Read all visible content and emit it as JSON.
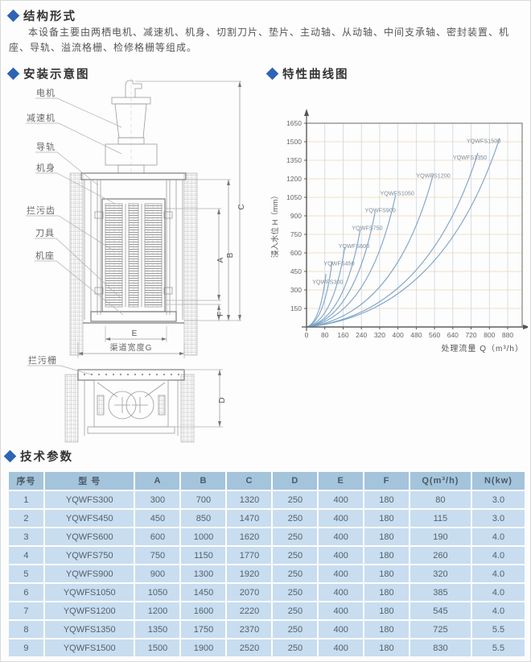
{
  "colors": {
    "accent_blue": "#2e63b5",
    "table_header_bg": "#a4c4db",
    "table_row_bg": "#c8ddef",
    "curve_color": "#7ba2c9",
    "grid_h_color": "#f0d3b5",
    "grid_v_color": "#ccd6e2"
  },
  "page": {
    "heading_structure": "结构形式",
    "intro": "本设备主要由两栖电机、减速机、机身、切割刀片、垫片、主动轴、从动轴、中间支承轴、密封装置、机座、导轨、溢流格栅、检修格栅等组成。",
    "heading_install": "安装示意图",
    "heading_curve": "特性曲线图",
    "heading_params": "技术参数"
  },
  "diagram": {
    "labels": {
      "motor": "电机",
      "reducer": "减速机",
      "guide_rail": "导轨",
      "body": "机身",
      "trash_teeth": "拦污齿",
      "cutter": "刀具",
      "base": "机座",
      "trash_rack": "拦污栅"
    },
    "dims": {
      "A": "A",
      "B": "B",
      "C": "C",
      "D": "D",
      "E": "E",
      "F": "F",
      "channel_width": "渠道宽度G"
    }
  },
  "chart_data": {
    "type": "line",
    "title": "特性曲线图",
    "xlabel": "处理流量 Q（m³/h）",
    "ylabel": "浸入水位 H（mm）",
    "xlim": [
      0,
      880
    ],
    "ylim": [
      0,
      1650
    ],
    "x_ticks": [
      0,
      80,
      160,
      240,
      320,
      400,
      480,
      560,
      640,
      720,
      800,
      880
    ],
    "y_ticks": [
      150,
      300,
      450,
      600,
      750,
      900,
      1050,
      1200,
      1350,
      1500,
      1650
    ],
    "grid": true,
    "legend_position": "on-curve-labels",
    "series": [
      {
        "name": "YQWFS300",
        "bezier_points": [
          [
            0,
            0
          ],
          [
            60,
            30
          ],
          [
            85,
            430
          ]
        ],
        "label_pos": [
          25,
          350
        ]
      },
      {
        "name": "YQWFS450",
        "bezier_points": [
          [
            0,
            0
          ],
          [
            78,
            37
          ],
          [
            112,
            530
          ]
        ],
        "label_pos": [
          75,
          500
        ]
      },
      {
        "name": "YQWFS600",
        "bezier_points": [
          [
            0,
            0
          ],
          [
            118,
            46
          ],
          [
            168,
            650
          ]
        ],
        "label_pos": [
          140,
          640
        ]
      },
      {
        "name": "YQWFS750",
        "bezier_points": [
          [
            0,
            0
          ],
          [
            165,
            55
          ],
          [
            235,
            790
          ]
        ],
        "label_pos": [
          198,
          785
        ]
      },
      {
        "name": "YQWFS900",
        "bezier_points": [
          [
            0,
            0
          ],
          [
            210,
            65
          ],
          [
            300,
            930
          ]
        ],
        "label_pos": [
          255,
          930
        ]
      },
      {
        "name": "YQWFS1050",
        "bezier_points": [
          [
            0,
            0
          ],
          [
            273,
            75
          ],
          [
            390,
            1070
          ]
        ],
        "label_pos": [
          322,
          1065
        ]
      },
      {
        "name": "YQWFS1200",
        "bezier_points": [
          [
            0,
            0
          ],
          [
            389,
            87
          ],
          [
            555,
            1240
          ]
        ],
        "label_pos": [
          480,
          1210
        ]
      },
      {
        "name": "YQWFS1350",
        "bezier_points": [
          [
            0,
            0
          ],
          [
            525,
            99
          ],
          [
            750,
            1410
          ]
        ],
        "label_pos": [
          640,
          1355
        ]
      },
      {
        "name": "YQWFS1500",
        "bezier_points": [
          [
            0,
            0
          ],
          [
            592,
            107
          ],
          [
            845,
            1530
          ]
        ],
        "label_pos": [
          700,
          1490
        ]
      }
    ]
  },
  "table": {
    "headers": [
      "序号",
      "型  号",
      "A",
      "B",
      "C",
      "D",
      "E",
      "F",
      "Q(m³/h)",
      "N(kw)"
    ],
    "rows": [
      [
        "1",
        "YQWFS300",
        "300",
        "700",
        "1320",
        "250",
        "400",
        "180",
        "80",
        "3.0"
      ],
      [
        "2",
        "YQWFS450",
        "450",
        "850",
        "1470",
        "250",
        "400",
        "180",
        "115",
        "3.0"
      ],
      [
        "3",
        "YQWFS600",
        "600",
        "1000",
        "1620",
        "250",
        "400",
        "180",
        "190",
        "4.0"
      ],
      [
        "4",
        "YQWFS750",
        "750",
        "1150",
        "1770",
        "250",
        "400",
        "180",
        "260",
        "4.0"
      ],
      [
        "5",
        "YQWFS900",
        "900",
        "1300",
        "1920",
        "250",
        "400",
        "180",
        "320",
        "4.0"
      ],
      [
        "6",
        "YQWFS1050",
        "1050",
        "1450",
        "2070",
        "250",
        "400",
        "180",
        "385",
        "4.0"
      ],
      [
        "7",
        "YQWFS1200",
        "1200",
        "1600",
        "2220",
        "250",
        "400",
        "180",
        "545",
        "4.0"
      ],
      [
        "8",
        "YQWFS1350",
        "1350",
        "1750",
        "2370",
        "250",
        "400",
        "180",
        "725",
        "5.5"
      ],
      [
        "9",
        "YQWFS1500",
        "1500",
        "1900",
        "2520",
        "250",
        "400",
        "180",
        "830",
        "5.5"
      ]
    ]
  }
}
